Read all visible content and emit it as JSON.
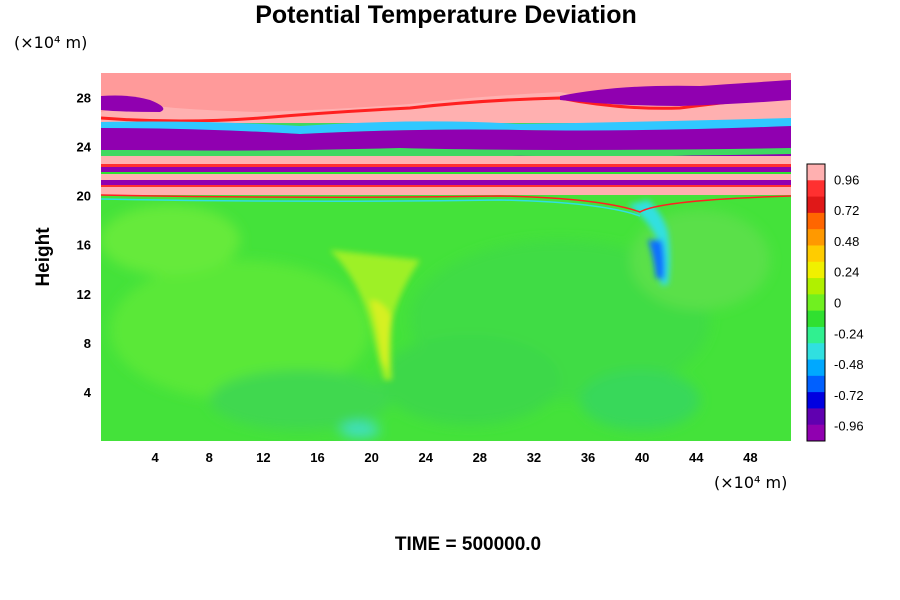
{
  "chart_data": {
    "type": "heatmap",
    "title": "Potential Temperature Deviation",
    "ylabel": "Height",
    "xunit": "(×10⁴ m)",
    "yunit": "(×10⁴ m)",
    "xlim": [
      0,
      51
    ],
    "ylim": [
      0,
      30
    ],
    "xticks": [
      4,
      8,
      12,
      16,
      20,
      24,
      28,
      32,
      36,
      40,
      44,
      48
    ],
    "yticks": [
      4,
      8,
      12,
      16,
      20,
      24,
      28
    ],
    "colorbar": {
      "range": [
        -1.08,
        1.08
      ],
      "ticks": [
        "0.96",
        "0.72",
        "0.48",
        "0.24",
        "0",
        "-0.24",
        "-0.48",
        "-0.72",
        "-0.96"
      ],
      "colors_top_to_bottom": [
        "#ffb0b0",
        "#ff3030",
        "#e01818",
        "#ff6600",
        "#ff9900",
        "#ffcc00",
        "#f0f000",
        "#b0f000",
        "#70f020",
        "#30e030",
        "#30f090",
        "#30e0e0",
        "#00a8ff",
        "#0060ff",
        "#0000e0",
        "#6000b0",
        "#9000b0"
      ]
    },
    "regions": [
      {
        "feature": "positive deviation band",
        "y_range": [
          26,
          29.5
        ],
        "value": 1.0
      },
      {
        "feature": "negative deviation band",
        "y_range": [
          22.5,
          25
        ],
        "value": -1.0
      },
      {
        "feature": "stratified alternating bands",
        "y_range": [
          19.5,
          22.5
        ],
        "value": "alternating"
      },
      {
        "feature": "near-zero background",
        "y_range": [
          0,
          19.5
        ],
        "value": -0.1
      },
      {
        "feature": "warm plume",
        "x": 21,
        "y_range": [
          4,
          14
        ],
        "value": 0.35
      },
      {
        "feature": "cold plume",
        "x": 40.5,
        "y_range": [
          13,
          18
        ],
        "value": -0.6
      }
    ]
  },
  "footer": {
    "time_label": "TIME = 500000.0"
  }
}
